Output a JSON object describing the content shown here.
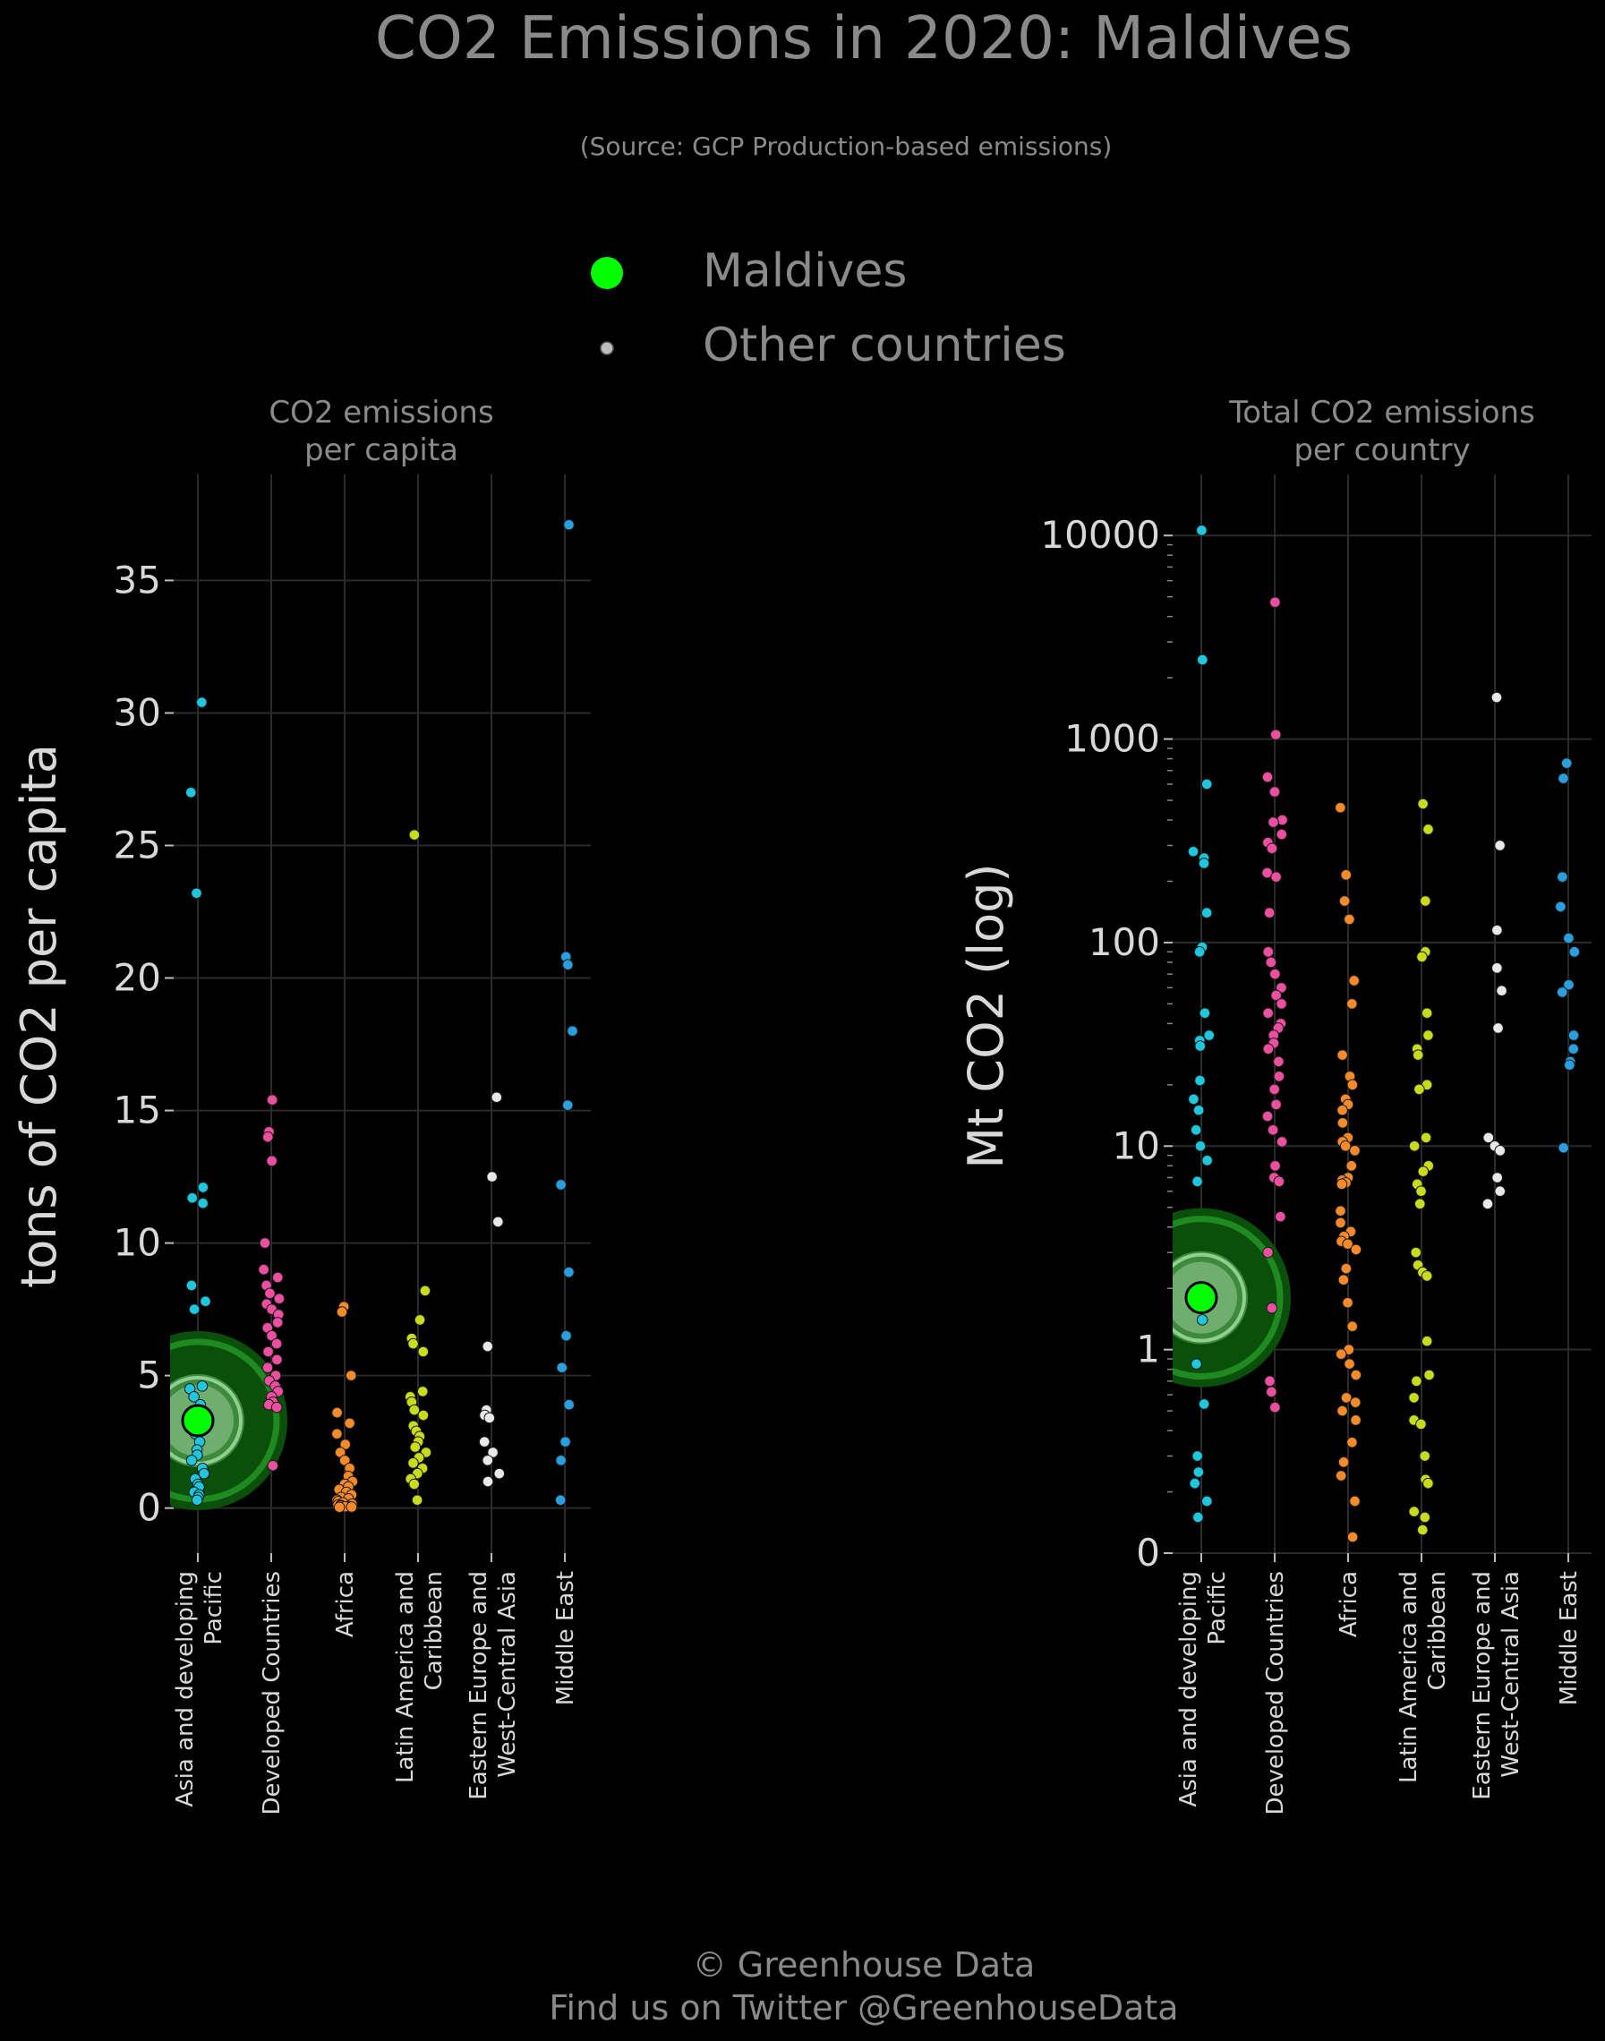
{
  "title": "CO2 Emissions in 2020: Maldives",
  "subtitle": "(Source: GCP Production-based emissions)",
  "legend": {
    "highlight": "Maldives",
    "others": "Other countries"
  },
  "colors": {
    "background": "#000000",
    "highlight": "#00ff00",
    "highlight_halo_dark": "#0a4f0a",
    "highlight_halo_ring": "#1f8a1f",
    "highlight_halo_light": "#8fcf8f",
    "Asia and developing Pacific": "#1ec7dd",
    "Developed Countries": "#ec4fa0",
    "Africa": "#f58a2a",
    "Latin America and Caribbean": "#c8dc1e",
    "Eastern Europe and West-Central Asia": "#e8e8e8",
    "Middle East": "#2a9fe0",
    "grid": "#2b2b2b",
    "text": "#8a8a8a",
    "axis_text": "#d8d8d8"
  },
  "footer": {
    "line1": "© Greenhouse Data",
    "line2": "Find us on Twitter @GreenhouseData"
  },
  "chart_data": [
    {
      "type": "scatter",
      "title": "CO2 emissions\nper capita",
      "ylabel": "tons of CO2 per capita",
      "yscale": "linear",
      "ylim": [
        -1.7,
        39
      ],
      "yticks": [
        0,
        5,
        10,
        15,
        20,
        25,
        30,
        35
      ],
      "ytick_labels": [
        "0",
        "5",
        "10",
        "15",
        "20",
        "25",
        "30",
        "35"
      ],
      "grid": true,
      "categories": [
        "Asia and developing\nPacific",
        "Developed Countries",
        "Africa",
        "Latin America and\nCaribbean",
        "Eastern Europe and\nWest-Central Asia",
        "Middle East"
      ],
      "highlight": {
        "name": "Maldives",
        "category_index": 0,
        "value": 3.3
      },
      "series": [
        {
          "region": "Asia and developing Pacific",
          "values": [
            30.4,
            27.0,
            23.2,
            12.1,
            11.7,
            11.5,
            8.4,
            7.8,
            7.5,
            4.6,
            4.5,
            4.2,
            3.9,
            3.5,
            3.2,
            2.8,
            2.5,
            2.2,
            2.0,
            1.8,
            1.5,
            1.3,
            1.1,
            0.9,
            0.8,
            0.6,
            0.5,
            0.4,
            0.3
          ]
        },
        {
          "region": "Developed Countries",
          "values": [
            15.4,
            14.2,
            14.0,
            13.1,
            10.0,
            9.0,
            8.7,
            8.4,
            8.1,
            7.9,
            7.7,
            7.5,
            7.3,
            7.0,
            6.8,
            6.5,
            6.2,
            5.9,
            5.6,
            5.3,
            5.0,
            4.8,
            4.6,
            4.4,
            4.2,
            4.0,
            3.9,
            3.8,
            1.6
          ]
        },
        {
          "region": "Africa",
          "values": [
            7.6,
            7.4,
            5.0,
            3.6,
            3.2,
            2.8,
            2.4,
            2.1,
            1.8,
            1.5,
            1.2,
            1.0,
            0.9,
            0.8,
            0.7,
            0.6,
            0.5,
            0.4,
            0.35,
            0.3,
            0.25,
            0.2,
            0.15,
            0.12,
            0.1,
            0.08,
            0.06,
            0.05,
            0.04,
            0.03
          ]
        },
        {
          "region": "Latin America and Caribbean",
          "values": [
            25.4,
            8.2,
            7.1,
            6.4,
            6.2,
            5.9,
            4.4,
            4.2,
            4.0,
            3.7,
            3.5,
            3.1,
            2.9,
            2.7,
            2.5,
            2.3,
            2.1,
            1.9,
            1.7,
            1.5,
            1.3,
            1.1,
            0.9,
            0.3
          ]
        },
        {
          "region": "Eastern Europe and West-Central Asia",
          "values": [
            15.5,
            12.5,
            10.8,
            6.1,
            3.7,
            3.5,
            3.4,
            2.5,
            2.1,
            1.8,
            1.3,
            1.0
          ]
        },
        {
          "region": "Middle East",
          "values": [
            37.1,
            20.8,
            20.5,
            18.0,
            15.2,
            12.2,
            8.9,
            6.5,
            5.3,
            3.9,
            2.5,
            1.8,
            0.3
          ]
        }
      ]
    },
    {
      "type": "scatter",
      "title": "Total CO2 emissions\nper country",
      "ylabel": "Mt CO2 (log)",
      "yscale": "log",
      "ylim_log10": [
        -1.0,
        4.3
      ],
      "yticks": [
        0.1,
        1,
        10,
        100,
        1000,
        10000
      ],
      "ytick_labels": [
        "0",
        "1",
        "10",
        "100",
        "1000",
        "10000"
      ],
      "grid": true,
      "categories": [
        "Asia and developing\nPacific",
        "Developed Countries",
        "Africa",
        "Latin America and\nCaribbean",
        "Eastern Europe and\nWest-Central Asia",
        "Middle East"
      ],
      "highlight": {
        "name": "Maldives",
        "category_index": 0,
        "value": 1.8
      },
      "series": [
        {
          "region": "Asia and developing Pacific",
          "values": [
            10600,
            2450,
            600,
            280,
            260,
            245,
            140,
            95,
            90,
            45,
            35,
            33,
            31,
            21,
            17,
            15,
            12,
            10,
            8.5,
            6.7,
            1.4,
            0.85,
            0.54,
            0.3,
            0.25,
            0.22,
            0.18,
            0.15
          ]
        },
        {
          "region": "Developed Countries",
          "values": [
            4700,
            1050,
            650,
            550,
            400,
            390,
            340,
            310,
            290,
            220,
            210,
            140,
            90,
            80,
            70,
            60,
            55,
            50,
            45,
            40,
            38,
            35,
            32,
            30,
            26,
            22,
            19,
            16,
            14,
            12,
            10.5,
            8,
            7,
            6.7,
            4.5,
            3,
            1.6,
            0.7,
            0.62,
            0.52
          ]
        },
        {
          "region": "Africa",
          "values": [
            460,
            215,
            160,
            130,
            65,
            50,
            28,
            22,
            20,
            17,
            16,
            15,
            13,
            11,
            10.5,
            10,
            9.5,
            8,
            7,
            6.8,
            6.6,
            6.5,
            4.8,
            4.2,
            3.8,
            3.6,
            3.4,
            3.3,
            3.1,
            2.5,
            2.2,
            1.7,
            1.3,
            1.0,
            0.95,
            0.85,
            0.75,
            0.58,
            0.55,
            0.5,
            0.45,
            0.35,
            0.28,
            0.24,
            0.18,
            0.12
          ]
        },
        {
          "region": "Latin America and Caribbean",
          "values": [
            480,
            360,
            160,
            90,
            85,
            45,
            35,
            30,
            28,
            20,
            19,
            11,
            10,
            8,
            7.5,
            6.5,
            6,
            5.2,
            3,
            2.6,
            2.4,
            2.3,
            1.1,
            0.75,
            0.7,
            0.58,
            0.45,
            0.43,
            0.3,
            0.23,
            0.22,
            0.16,
            0.15,
            0.13
          ]
        },
        {
          "region": "Eastern Europe and West-Central Asia",
          "values": [
            1600,
            300,
            115,
            75,
            58,
            38,
            11,
            10,
            9.5,
            7,
            6,
            5.2
          ]
        },
        {
          "region": "Middle East",
          "values": [
            760,
            640,
            210,
            150,
            105,
            90,
            62,
            57,
            35,
            30,
            26,
            25,
            9.8
          ]
        }
      ]
    }
  ]
}
